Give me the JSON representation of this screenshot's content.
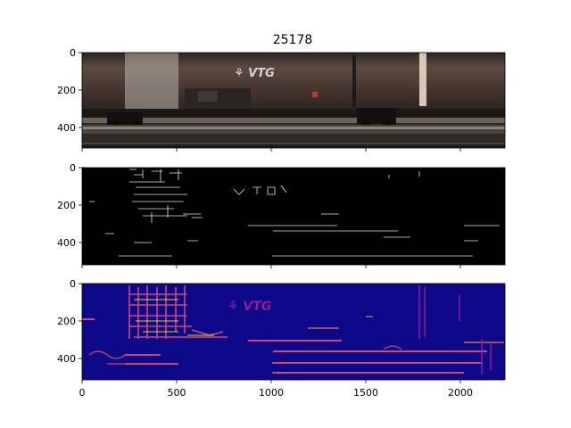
{
  "figure": {
    "title": "25178"
  },
  "panels": [
    {
      "name": "original-image",
      "image_type": "rgb-photo",
      "subject": "tank wagon with VTG logo on rails",
      "logo_text": "VTG",
      "y_ticks": [
        "0",
        "200",
        "400"
      ],
      "x_tick_labels_visible": false
    },
    {
      "name": "edge-binary-image",
      "image_type": "binary-edges",
      "y_ticks": [
        "0",
        "200",
        "400"
      ],
      "x_tick_labels_visible": false
    },
    {
      "name": "edge-magnitude-image",
      "image_type": "plasma-colormap",
      "logo_text": "VTG",
      "y_ticks": [
        "0",
        "200",
        "400"
      ],
      "x_ticks": [
        "0",
        "500",
        "1000",
        "1500",
        "2000"
      ]
    }
  ],
  "axis": {
    "x_values": [
      0,
      500,
      1000,
      1500,
      2000
    ],
    "y_values": [
      0,
      200,
      400
    ],
    "xlim": [
      -0.5,
      2240
    ],
    "ylim_top_down": [
      -0.5,
      512
    ]
  },
  "colors": {
    "rail_dark": "#1d1a17",
    "tank_brown": "#4a3a32",
    "sky": "#c9c7c2",
    "plasma_bg": "#0d0887",
    "plasma_mid": "#cc4778",
    "plasma_hot": "#f0f921"
  }
}
